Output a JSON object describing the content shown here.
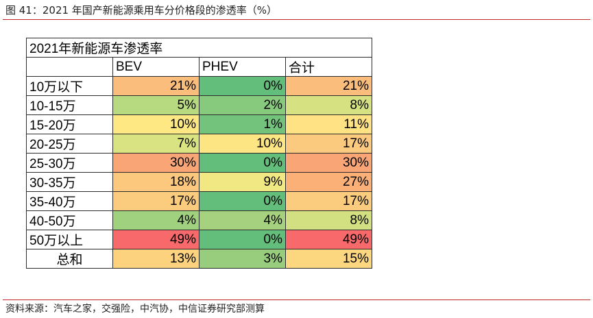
{
  "figure_title": "图 41：2021 年国产新能源乘用车分价格段的渗透率（%）",
  "source": "资料来源：汽车之家，交强险，中汽协，中信证券研究部测算",
  "table": {
    "title": "2021年新能源车渗透率",
    "headers": [
      "",
      "BEV",
      "PHEV",
      "合计"
    ],
    "rows": [
      {
        "label": "10万以下",
        "bev": "21%",
        "phev": "0%",
        "total": "21%"
      },
      {
        "label": "10-15万",
        "bev": "5%",
        "phev": "2%",
        "total": "8%"
      },
      {
        "label": "15-20万",
        "bev": "10%",
        "phev": "1%",
        "total": "11%"
      },
      {
        "label": "20-25万",
        "bev": "7%",
        "phev": "10%",
        "total": "17%"
      },
      {
        "label": "25-30万",
        "bev": "30%",
        "phev": "0%",
        "total": "30%"
      },
      {
        "label": "30-35万",
        "bev": "18%",
        "phev": "9%",
        "total": "27%"
      },
      {
        "label": "35-40万",
        "bev": "17%",
        "phev": "0%",
        "total": "17%"
      },
      {
        "label": "40-50万",
        "bev": "4%",
        "phev": "4%",
        "total": "8%"
      },
      {
        "label": "50万以上",
        "bev": "49%",
        "phev": "0%",
        "total": "49%"
      },
      {
        "label": "总和",
        "bev": "13%",
        "phev": "3%",
        "total": "15%"
      }
    ],
    "cell_colors": [
      [
        "#fbbd7c",
        "#63be7b",
        "#fbbd7c"
      ],
      [
        "#b7d97f",
        "#87c97d",
        "#d6e282"
      ],
      [
        "#fde884",
        "#74c37c",
        "#fee283"
      ],
      [
        "#d9e382",
        "#fee583",
        "#fcca7e"
      ],
      [
        "#faa575",
        "#63be7b",
        "#faa575"
      ],
      [
        "#fcc87e",
        "#f1e783",
        "#fbb078"
      ],
      [
        "#fccc7e",
        "#63be7b",
        "#fccc7e"
      ],
      [
        "#a0d17e",
        "#a6d27f",
        "#d3e082"
      ],
      [
        "#f8696b",
        "#63be7b",
        "#f8696b"
      ],
      [
        "#fdd27f",
        "#98cd7e",
        "#fdd680"
      ]
    ]
  }
}
